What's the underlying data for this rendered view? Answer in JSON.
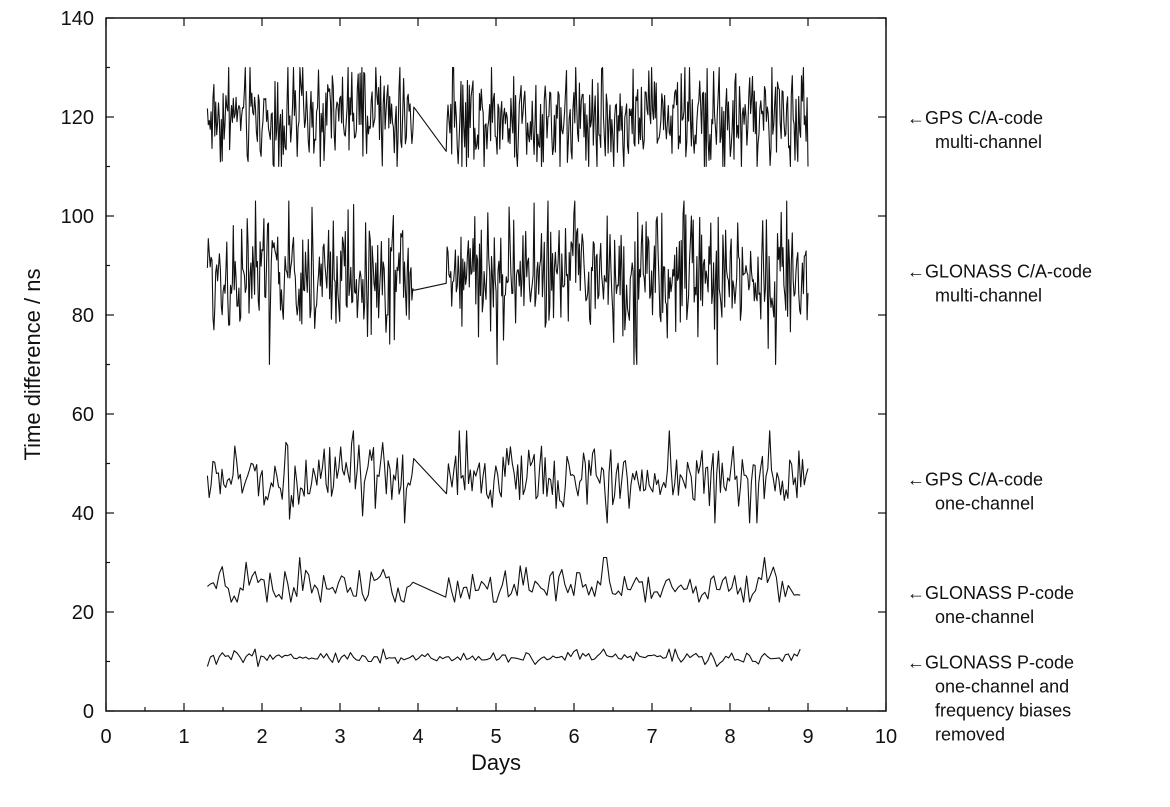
{
  "chart_data": {
    "type": "line",
    "xlabel": "Days",
    "ylabel": "Time difference / ns",
    "xlim": [
      0,
      10
    ],
    "ylim": [
      0,
      140
    ],
    "xticks": [
      "0",
      "1",
      "2",
      "3",
      "4",
      "5",
      "6",
      "7",
      "8",
      "9",
      "10"
    ],
    "yticks": [
      "0",
      "20",
      "40",
      "60",
      "80",
      "100",
      "120",
      "140"
    ],
    "grid": false,
    "legend": "annotations at right edge",
    "series": [
      {
        "name": "GPS C/A-code multi-channel",
        "label_lines": [
          "←GPS C/A-code",
          "multi-channel"
        ],
        "label_y": 120,
        "x_start": 1.3,
        "x_end": 9.0,
        "mean": 120,
        "spread": 5.0,
        "min": 110,
        "max": 130,
        "gap": {
          "from": 3.95,
          "to": 4.35,
          "start_value": 122,
          "end_value": 113
        },
        "npoints": 650
      },
      {
        "name": "GLONASS C/A-code multi-channel",
        "label_lines": [
          "←GLONASS C/A-code",
          "multi-channel"
        ],
        "label_y": 89,
        "x_start": 1.3,
        "x_end": 9.0,
        "mean": 88,
        "spread": 6.0,
        "min": 67,
        "max": 103,
        "gap": {
          "from": 3.95,
          "to": 4.35,
          "start_value": 85,
          "end_value": 88
        },
        "npoints": 650
      },
      {
        "name": "GPS C/A-code one-channel",
        "label_lines": [
          "←GPS C/A-code",
          "one-channel"
        ],
        "label_y": 47,
        "x_start": 1.3,
        "x_end": 9.0,
        "mean": 47,
        "spread": 3.2,
        "min": 38,
        "max": 60,
        "gap": {
          "from": 3.95,
          "to": 4.35,
          "start_value": 51,
          "end_value": 42
        },
        "npoints": 330
      },
      {
        "name": "GLONASS P-code one-channel",
        "label_lines": [
          "←GLONASS P-code",
          "one-channel"
        ],
        "label_y": 24,
        "x_start": 1.3,
        "x_end": 8.9,
        "mean": 25,
        "spread": 2.0,
        "min": 22,
        "max": 33,
        "gap": {
          "from": 3.95,
          "to": 4.35,
          "start_value": 26,
          "end_value": 23
        },
        "npoints": 200
      },
      {
        "name": "GLONASS P-code one-channel and frequency biases removed",
        "label_lines": [
          "←GLONASS P-code",
          "one-channel and",
          "frequency biases",
          "removed"
        ],
        "label_y": 10,
        "x_start": 1.3,
        "x_end": 8.9,
        "mean": 10.8,
        "spread": 0.6,
        "min": 8.5,
        "max": 12.5,
        "gap": null,
        "npoints": 200
      }
    ]
  }
}
